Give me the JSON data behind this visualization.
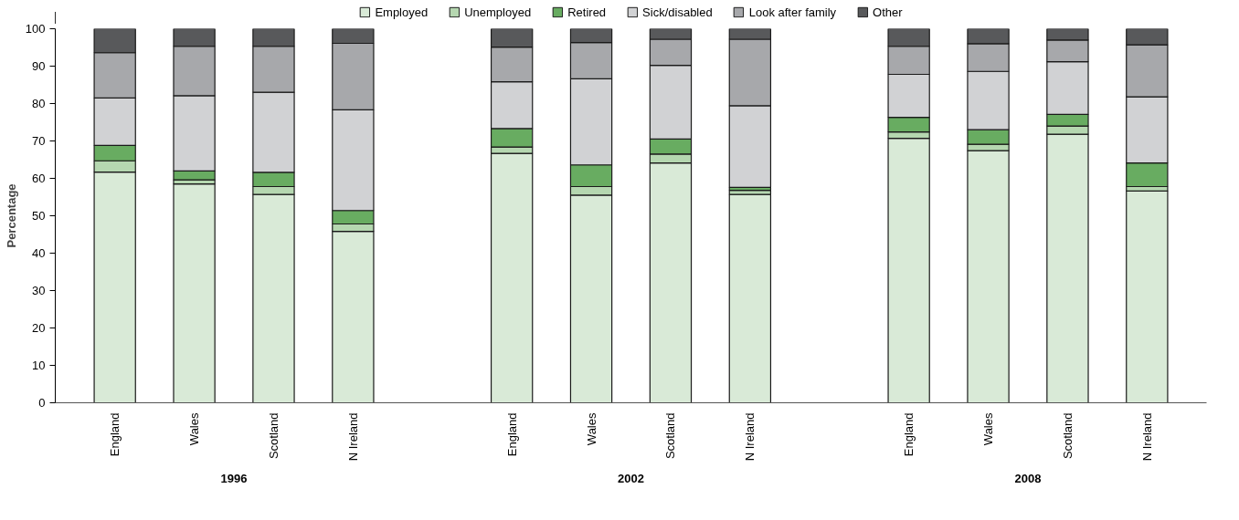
{
  "chart_data": {
    "type": "bar",
    "stacked": true,
    "ylabel": "Percentage",
    "categories": [
      "England",
      "Wales",
      "Scotland",
      "N Ireland",
      null,
      "England",
      "Wales",
      "Scotland",
      "N Ireland",
      null,
      "England",
      "Wales",
      "Scotland",
      "N Ireland"
    ],
    "series": [
      {
        "name": "Employed",
        "color": "#d9ead7",
        "values": [
          61.7,
          58.5,
          55.7,
          45.8,
          null,
          66.7,
          55.5,
          64.1,
          55.7,
          null,
          70.7,
          67.4,
          71.8,
          56.6
        ]
      },
      {
        "name": "Unemployed",
        "color": "#b5d7b0",
        "values": [
          3.0,
          1.1,
          2.1,
          2.0,
          null,
          1.7,
          2.3,
          2.4,
          1.1,
          null,
          1.7,
          1.7,
          2.2,
          1.2
        ]
      },
      {
        "name": "Retired",
        "color": "#68ac61",
        "values": [
          4.1,
          2.4,
          3.8,
          3.6,
          null,
          4.9,
          5.8,
          4.0,
          0.8,
          null,
          3.9,
          3.9,
          3.1,
          6.3
        ]
      },
      {
        "name": "Sick/disabled",
        "color": "#d1d2d4",
        "values": [
          12.7,
          20.1,
          21.4,
          26.9,
          null,
          12.5,
          23.0,
          19.7,
          21.8,
          null,
          11.5,
          15.6,
          14.1,
          17.7
        ]
      },
      {
        "name": "Look after family",
        "color": "#a7a8ab",
        "values": [
          12.1,
          13.2,
          12.3,
          17.8,
          null,
          9.3,
          9.7,
          7.0,
          17.8,
          null,
          7.5,
          7.4,
          5.8,
          13.9
        ]
      },
      {
        "name": "Other",
        "color": "#58595b",
        "values": [
          6.4,
          4.7,
          4.7,
          3.9,
          null,
          4.9,
          3.7,
          2.8,
          2.8,
          null,
          4.7,
          4.0,
          3.0,
          4.3
        ]
      }
    ],
    "annotations": [
      "1996",
      "2002",
      "2008"
    ],
    "ylim": [
      0,
      100
    ],
    "yticks": [
      0,
      10,
      20,
      30,
      40,
      50,
      60,
      70,
      80,
      90,
      100
    ],
    "grid": false,
    "legend": "top"
  }
}
